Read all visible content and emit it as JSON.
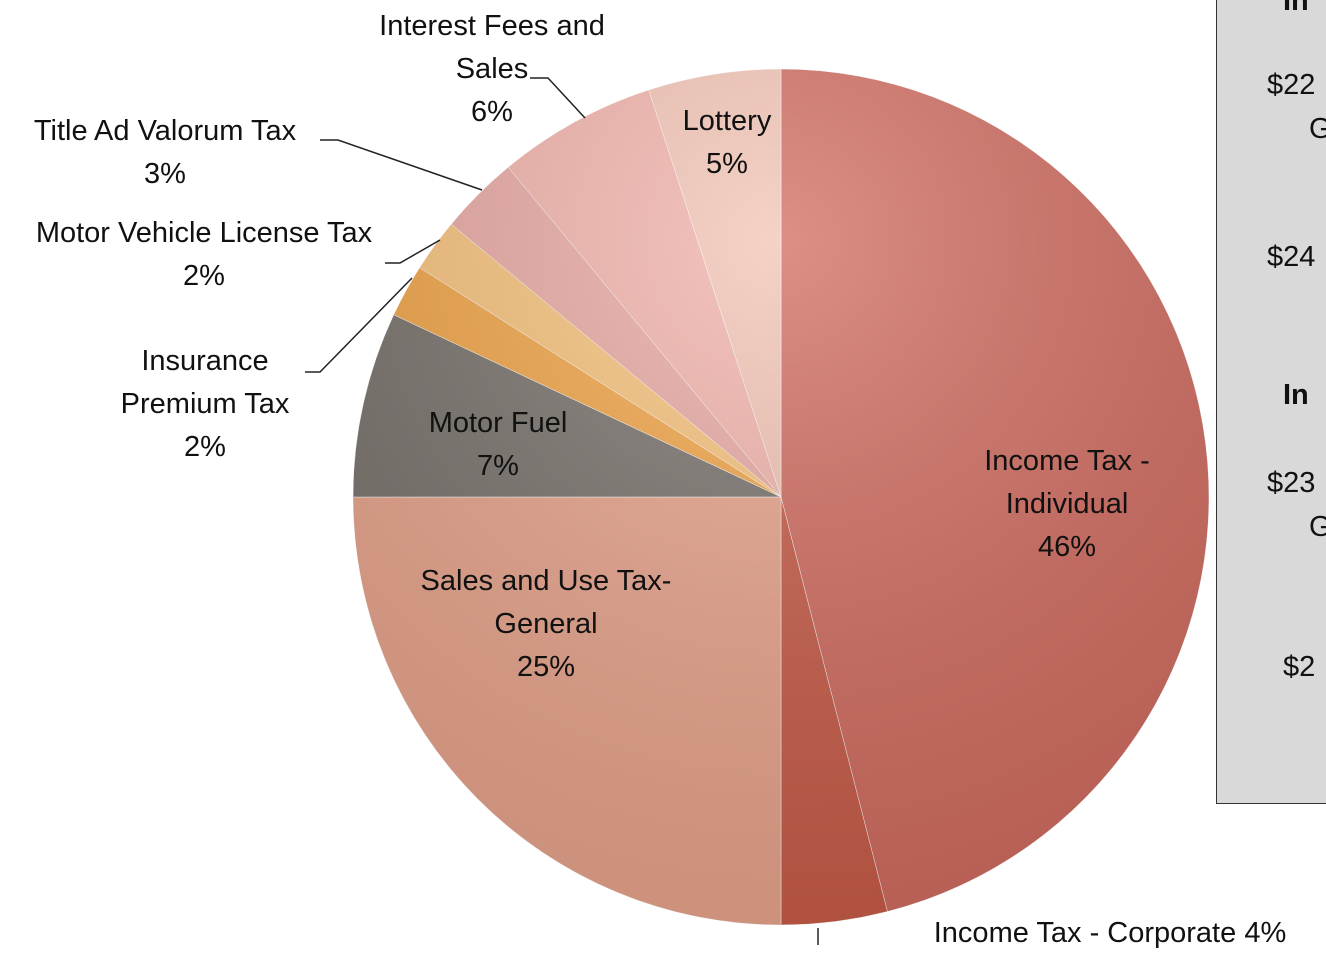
{
  "chart_data": {
    "type": "pie",
    "categories": [
      "Income Tax - Individual",
      "Income Tax - Corporate",
      "Sales and Use Tax-General",
      "Motor Fuel",
      "Insurance Premium Tax",
      "Motor Vehicle License Tax",
      "Title Ad Valorum Tax",
      "Interest Fees and Sales",
      "Lottery"
    ],
    "values": [
      46,
      4,
      25,
      7,
      2,
      2,
      3,
      6,
      5
    ],
    "value_labels": [
      "46%",
      "4%",
      "25%",
      "7%",
      "2%",
      "2%",
      "3%",
      "6%",
      "5%"
    ],
    "colors": [
      "#d16a5e",
      "#c85a46",
      "#e8a38b",
      "#77706a",
      "#f2a445",
      "#f8c27a",
      "#eaa8a2",
      "#f3b2aa",
      "#f3c3b3"
    ]
  },
  "side_panel": {
    "lines": [
      "In",
      "$22",
      "G",
      "$24",
      "In",
      "$23",
      "G",
      "$2"
    ]
  }
}
